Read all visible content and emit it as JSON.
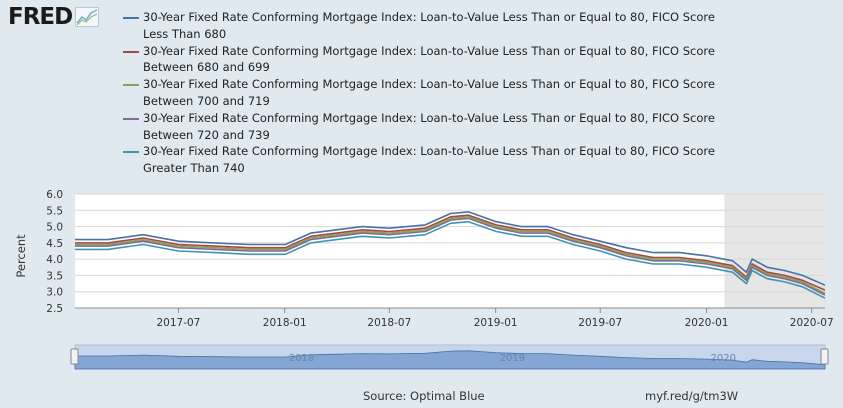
{
  "logo": {
    "text": "FRED",
    "icon": "chart-line-icon"
  },
  "footer": {
    "source": "Source: Optimal Blue",
    "link": "myf.red/g/tm3W"
  },
  "colors": {
    "series": [
      "#4572a7",
      "#aa4643",
      "#89a54e",
      "#80699b",
      "#3d96ae"
    ],
    "recession_shade": "#e6e6e6",
    "navigator": "#7da0d1"
  },
  "chart_data": {
    "type": "line",
    "ylabel": "Percent",
    "ylim": [
      2.5,
      6.0
    ],
    "yticks": [
      "2.5",
      "3.0",
      "3.5",
      "4.0",
      "4.5",
      "5.0",
      "5.5",
      "6.0"
    ],
    "xlim": [
      "2017-01-03",
      "2020-07-24"
    ],
    "xticks": [
      {
        "date": "2017-07-01",
        "label": "2017-07"
      },
      {
        "date": "2018-01-01",
        "label": "2018-01"
      },
      {
        "date": "2018-07-01",
        "label": "2018-07"
      },
      {
        "date": "2019-01-01",
        "label": "2019-01"
      },
      {
        "date": "2019-07-01",
        "label": "2019-07"
      },
      {
        "date": "2020-01-01",
        "label": "2020-01"
      },
      {
        "date": "2020-07-01",
        "label": "2020-07"
      }
    ],
    "shaded_region": [
      "2020-02-01",
      "2020-07-24"
    ],
    "navigator_labels": [
      "2018",
      "2019",
      "2020"
    ],
    "series": [
      {
        "name": "30-Year Fixed Rate Conforming Mortgage Index: Loan-to-Value Less Than or Equal to 80, FICO Score Less Than 680",
        "color": "#4572a7",
        "x": [
          "2017-01-03",
          "2017-03-01",
          "2017-05-01",
          "2017-07-01",
          "2017-09-01",
          "2017-11-01",
          "2018-01-02",
          "2018-02-15",
          "2018-04-01",
          "2018-05-15",
          "2018-07-01",
          "2018-09-01",
          "2018-10-15",
          "2018-11-15",
          "2019-01-02",
          "2019-02-15",
          "2019-04-01",
          "2019-05-15",
          "2019-07-01",
          "2019-08-15",
          "2019-10-01",
          "2019-11-15",
          "2020-01-02",
          "2020-02-15",
          "2020-03-10",
          "2020-03-20",
          "2020-04-15",
          "2020-05-15",
          "2020-06-15",
          "2020-07-24"
        ],
        "values": [
          4.6,
          4.6,
          4.75,
          4.55,
          4.5,
          4.45,
          4.45,
          4.8,
          4.9,
          5.0,
          4.95,
          5.05,
          5.4,
          5.45,
          5.15,
          5.0,
          5.0,
          4.75,
          4.55,
          4.35,
          4.2,
          4.2,
          4.1,
          3.95,
          3.6,
          4.0,
          3.75,
          3.65,
          3.5,
          3.2
        ]
      },
      {
        "name": "30-Year Fixed Rate Conforming Mortgage Index: Loan-to-Value Less Than or Equal to 80, FICO Score Between 680 and 699",
        "color": "#aa4643",
        "x": [
          "2017-01-03",
          "2017-03-01",
          "2017-05-01",
          "2017-07-01",
          "2017-09-01",
          "2017-11-01",
          "2018-01-02",
          "2018-02-15",
          "2018-04-01",
          "2018-05-15",
          "2018-07-01",
          "2018-09-01",
          "2018-10-15",
          "2018-11-15",
          "2019-01-02",
          "2019-02-15",
          "2019-04-01",
          "2019-05-15",
          "2019-07-01",
          "2019-08-15",
          "2019-10-01",
          "2019-11-15",
          "2020-01-02",
          "2020-02-15",
          "2020-03-10",
          "2020-03-20",
          "2020-04-15",
          "2020-05-15",
          "2020-06-15",
          "2020-07-24"
        ],
        "values": [
          4.5,
          4.5,
          4.65,
          4.45,
          4.4,
          4.35,
          4.35,
          4.7,
          4.8,
          4.9,
          4.85,
          4.95,
          5.3,
          5.35,
          5.05,
          4.9,
          4.9,
          4.65,
          4.45,
          4.2,
          4.05,
          4.05,
          3.95,
          3.8,
          3.45,
          3.85,
          3.6,
          3.5,
          3.35,
          3.05
        ]
      },
      {
        "name": "30-Year Fixed Rate Conforming Mortgage Index: Loan-to-Value Less Than or Equal to 80, FICO Score Between 700 and 719",
        "color": "#89a54e",
        "x": [
          "2017-01-03",
          "2017-03-01",
          "2017-05-01",
          "2017-07-01",
          "2017-09-01",
          "2017-11-01",
          "2018-01-02",
          "2018-02-15",
          "2018-04-01",
          "2018-05-15",
          "2018-07-01",
          "2018-09-01",
          "2018-10-15",
          "2018-11-15",
          "2019-01-02",
          "2019-02-15",
          "2019-04-01",
          "2019-05-15",
          "2019-07-01",
          "2019-08-15",
          "2019-10-01",
          "2019-11-15",
          "2020-01-02",
          "2020-02-15",
          "2020-03-10",
          "2020-03-20",
          "2020-04-15",
          "2020-05-15",
          "2020-06-15",
          "2020-07-24"
        ],
        "values": [
          4.45,
          4.45,
          4.6,
          4.4,
          4.35,
          4.3,
          4.3,
          4.65,
          4.75,
          4.85,
          4.8,
          4.9,
          5.25,
          5.3,
          5.0,
          4.85,
          4.85,
          4.6,
          4.4,
          4.15,
          4.0,
          4.0,
          3.9,
          3.75,
          3.4,
          3.8,
          3.55,
          3.45,
          3.3,
          2.95
        ]
      },
      {
        "name": "30-Year Fixed Rate Conforming Mortgage Index: Loan-to-Value Less Than or Equal to 80, FICO Score Between 720 and 739",
        "color": "#80699b",
        "x": [
          "2017-01-03",
          "2017-03-01",
          "2017-05-01",
          "2017-07-01",
          "2017-09-01",
          "2017-11-01",
          "2018-01-02",
          "2018-02-15",
          "2018-04-01",
          "2018-05-15",
          "2018-07-01",
          "2018-09-01",
          "2018-10-15",
          "2018-11-15",
          "2019-01-02",
          "2019-02-15",
          "2019-04-01",
          "2019-05-15",
          "2019-07-01",
          "2019-08-15",
          "2019-10-01",
          "2019-11-15",
          "2020-01-02",
          "2020-02-15",
          "2020-03-10",
          "2020-03-20",
          "2020-04-15",
          "2020-05-15",
          "2020-06-15",
          "2020-07-24"
        ],
        "values": [
          4.4,
          4.4,
          4.55,
          4.35,
          4.3,
          4.25,
          4.25,
          4.6,
          4.7,
          4.8,
          4.75,
          4.85,
          5.2,
          5.25,
          4.95,
          4.8,
          4.8,
          4.55,
          4.35,
          4.1,
          3.95,
          3.95,
          3.85,
          3.7,
          3.35,
          3.75,
          3.5,
          3.4,
          3.25,
          2.9
        ]
      },
      {
        "name": "30-Year Fixed Rate Conforming Mortgage Index: Loan-to-Value Less Than or Equal to 80, FICO Score Greater Than 740",
        "color": "#3d96ae",
        "x": [
          "2017-01-03",
          "2017-03-01",
          "2017-05-01",
          "2017-07-01",
          "2017-09-01",
          "2017-11-01",
          "2018-01-02",
          "2018-02-15",
          "2018-04-01",
          "2018-05-15",
          "2018-07-01",
          "2018-09-01",
          "2018-10-15",
          "2018-11-15",
          "2019-01-02",
          "2019-02-15",
          "2019-04-01",
          "2019-05-15",
          "2019-07-01",
          "2019-08-15",
          "2019-10-01",
          "2019-11-15",
          "2020-01-02",
          "2020-02-15",
          "2020-03-10",
          "2020-03-20",
          "2020-04-15",
          "2020-05-15",
          "2020-06-15",
          "2020-07-24"
        ],
        "values": [
          4.3,
          4.3,
          4.45,
          4.25,
          4.2,
          4.15,
          4.15,
          4.5,
          4.6,
          4.7,
          4.65,
          4.75,
          5.1,
          5.15,
          4.85,
          4.7,
          4.7,
          4.45,
          4.25,
          4.0,
          3.85,
          3.85,
          3.75,
          3.6,
          3.25,
          3.65,
          3.4,
          3.3,
          3.15,
          2.8
        ]
      }
    ]
  }
}
